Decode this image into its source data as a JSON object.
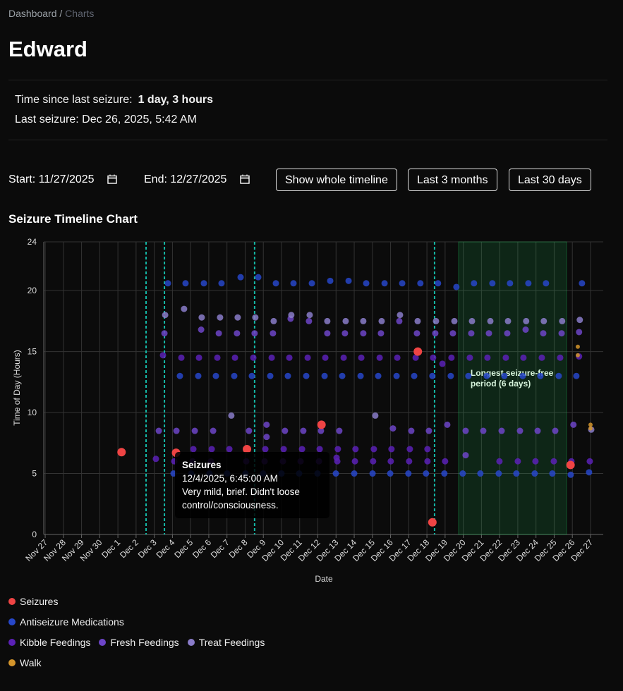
{
  "breadcrumb": {
    "home": "Dashboard",
    "separator": "/",
    "current": "Charts"
  },
  "header": {
    "title": "Edward"
  },
  "info": {
    "since_label": "Time since last seizure:",
    "since_value": "1 day, 3 hours",
    "last": "Last seizure: Dec 26, 2025, 5:42 AM"
  },
  "controls": {
    "start_label": "Start:",
    "start_value": "11/27/2025",
    "end_label": "End:",
    "end_value": "12/27/2025",
    "buttons": [
      "Show whole timeline",
      "Last 3 months",
      "Last 30 days"
    ]
  },
  "section_title": "Seizure Timeline Chart",
  "chart_data": {
    "type": "scatter",
    "x_label": "Date",
    "y_label": "Time of Day (Hours)",
    "grid": true,
    "xlim": [
      -0.08,
      30.7
    ],
    "ylim": [
      0,
      24
    ],
    "yticks": [
      0,
      5,
      10,
      15,
      20,
      24
    ],
    "xticks": [
      {
        "value": 0,
        "label": "Nov 27"
      },
      {
        "value": 1,
        "label": "Nov 28"
      },
      {
        "value": 2,
        "label": "Nov 29"
      },
      {
        "value": 3,
        "label": "Nov 30"
      },
      {
        "value": 4,
        "label": "Dec 1"
      },
      {
        "value": 5,
        "label": "Dec 2"
      },
      {
        "value": 6,
        "label": "Dec 3"
      },
      {
        "value": 7,
        "label": "Dec 4"
      },
      {
        "value": 8,
        "label": "Dec 5"
      },
      {
        "value": 9,
        "label": "Dec 6"
      },
      {
        "value": 10,
        "label": "Dec 7"
      },
      {
        "value": 11,
        "label": "Dec 8"
      },
      {
        "value": 12,
        "label": "Dec 9"
      },
      {
        "value": 13,
        "label": "Dec 10"
      },
      {
        "value": 14,
        "label": "Dec 11"
      },
      {
        "value": 15,
        "label": "Dec 12"
      },
      {
        "value": 16,
        "label": "Dec 13"
      },
      {
        "value": 17,
        "label": "Dec 14"
      },
      {
        "value": 18,
        "label": "Dec 15"
      },
      {
        "value": 19,
        "label": "Dec 16"
      },
      {
        "value": 20,
        "label": "Dec 17"
      },
      {
        "value": 21,
        "label": "Dec 18"
      },
      {
        "value": 22,
        "label": "Dec 19"
      },
      {
        "value": 23,
        "label": "Dec 20"
      },
      {
        "value": 24,
        "label": "Dec 21"
      },
      {
        "value": 25,
        "label": "Dec 22"
      },
      {
        "value": 26,
        "label": "Dec 23"
      },
      {
        "value": 27,
        "label": "Dec 24"
      },
      {
        "value": 28,
        "label": "Dec 25"
      },
      {
        "value": 29,
        "label": "Dec 26"
      },
      {
        "value": 30,
        "label": "Dec 27"
      }
    ],
    "vlines": [
      5.55,
      6.56,
      11.52,
      21.42
    ],
    "vline_color": "#14b8a6",
    "region": {
      "x": [
        22.74,
        28.68
      ],
      "color": "#22c55e",
      "label": [
        "Longest seizure-free",
        "period (6 days)"
      ]
    },
    "tooltip": {
      "title": "Seizures",
      "date": "12/4/2025, 6:45:00 AM",
      "text": "Very mild, brief. Didn't loose control/consciousness."
    },
    "series": [
      {
        "name": "Seizures",
        "color": "#ef4444",
        "x": [
          4.2,
          7.2,
          11.1,
          15.2,
          20.5,
          21.3,
          28.9
        ],
        "values": [
          6.75,
          6.7,
          7.0,
          9.0,
          15.0,
          1.0,
          5.7
        ]
      },
      {
        "name": "Antiseizure Medications",
        "color": "#2747c9",
        "x": [
          6.75,
          7.72,
          8.73,
          9.7,
          10.75,
          11.72,
          12.69,
          13.66,
          14.67,
          15.68,
          16.69,
          17.66,
          18.67,
          19.64,
          20.64,
          21.61,
          22.62,
          23.59,
          24.6,
          25.57,
          26.58,
          27.55,
          29.53,
          7.41,
          8.42,
          9.39,
          10.4,
          11.37,
          12.38,
          13.35,
          14.36,
          15.37,
          16.34,
          17.35,
          18.32,
          19.33,
          20.3,
          21.3,
          22.31,
          23.28,
          24.29,
          25.26,
          26.27,
          27.24,
          28.25,
          29.22,
          7.06,
          8.03,
          9.04,
          10.01,
          11.02,
          11.99,
          13,
          13.97,
          14.98,
          15.99,
          17,
          18.01,
          18.98,
          19.98,
          20.95,
          21.96,
          22.97,
          23.94,
          24.95,
          25.92,
          26.93,
          27.9,
          28.91,
          29.92
        ],
        "values": [
          20.6,
          20.6,
          20.6,
          20.6,
          21.1,
          21.1,
          20.6,
          20.6,
          20.6,
          20.8,
          20.8,
          20.6,
          20.6,
          20.6,
          20.6,
          20.6,
          20.3,
          20.6,
          20.6,
          20.6,
          20.6,
          20.6,
          20.6,
          13,
          13,
          13,
          13,
          13,
          13,
          13,
          13,
          13,
          13,
          13,
          13,
          13,
          13,
          13,
          13,
          13,
          13,
          13,
          13,
          13,
          13,
          13,
          5,
          5,
          5,
          5,
          5,
          5,
          5,
          5,
          5,
          5,
          5,
          5,
          5,
          5,
          5,
          5,
          5,
          5,
          5,
          5,
          5,
          5,
          4.9,
          5.1
        ]
      },
      {
        "name": "Kibble Feedings",
        "color": "#5b21b6",
        "x": [
          6.48,
          7.49,
          8.46,
          9.47,
          10.44,
          11.45,
          12.46,
          13.43,
          14.44,
          15.41,
          16.42,
          17.39,
          18.4,
          19.37,
          20.38,
          21.34,
          22.35,
          23.36,
          24.33,
          25.34,
          26.31,
          27.32,
          28.33,
          8.15,
          9.16,
          10.13,
          11.14,
          12.11,
          13.12,
          14.13,
          15.1,
          16.1,
          17.07,
          18.08,
          19.05,
          20.06,
          21.03,
          7.1,
          8.11,
          9.12,
          11.06,
          12.07,
          13.08,
          14.05,
          15.06,
          16.07,
          17.04,
          18.04,
          19.01,
          20.02,
          21.03,
          22.0,
          24.99,
          26.0,
          26.97,
          27.98,
          28.95,
          29.96,
          6.09,
          16.03,
          21.85,
          29.37
        ],
        "values": [
          14.7,
          14.5,
          14.5,
          14.5,
          14.5,
          14.5,
          14.5,
          14.5,
          14.5,
          14.5,
          14.5,
          14.5,
          14.5,
          14.5,
          14.5,
          14.5,
          14.5,
          14.5,
          14.5,
          14.5,
          14.5,
          14.5,
          14.5,
          7,
          7,
          7,
          7,
          7,
          7,
          7,
          7,
          7,
          7,
          7,
          7,
          7,
          7,
          6,
          6,
          6,
          6,
          6,
          6,
          6,
          6,
          6,
          6,
          6,
          6,
          6,
          6,
          6,
          6,
          6,
          6,
          6,
          6,
          6,
          6.2,
          6.3,
          14.0,
          14.6
        ]
      },
      {
        "name": "Fresh Feedings",
        "color": "#6d45c8",
        "x": [
          6.56,
          8.58,
          9.55,
          10.55,
          11.52,
          12.53,
          13.5,
          14.51,
          15.52,
          16.49,
          17.5,
          18.47,
          19.48,
          20.45,
          21.46,
          22.43,
          23.44,
          24.41,
          25.42,
          26.43,
          27.4,
          28.41,
          29.37,
          6.25,
          7.22,
          8.23,
          9.24,
          11.21,
          12.18,
          13.19,
          14.2,
          15.17,
          16.18,
          19.13,
          20.14,
          21.11,
          22.12,
          23.13,
          24.1,
          25.11,
          26.12,
          27.09,
          28.06,
          29.06,
          12.18,
          23.13
        ],
        "values": [
          16.5,
          16.8,
          16.5,
          16.5,
          16.5,
          16.5,
          17.7,
          17.5,
          16.5,
          16.5,
          16.5,
          16.5,
          17.5,
          16.5,
          16.5,
          16.5,
          16.5,
          16.5,
          16.5,
          16.8,
          16.5,
          16.5,
          16.6,
          8.5,
          8.5,
          8.5,
          8.5,
          8.5,
          9.0,
          8.5,
          8.5,
          8.5,
          8.5,
          8.7,
          8.5,
          8.5,
          9.0,
          8.5,
          8.5,
          8.5,
          8.5,
          8.5,
          8.5,
          9.0,
          8.0,
          6.5
        ]
      },
      {
        "name": "Treat Feedings",
        "color": "#8a7cc9",
        "x": [
          6.6,
          7.64,
          8.61,
          9.62,
          10.59,
          11.56,
          12.57,
          13.54,
          14.55,
          15.52,
          16.53,
          17.5,
          18.51,
          19.52,
          20.49,
          21.5,
          22.51,
          23.48,
          24.49,
          25.46,
          26.46,
          27.43,
          28.44,
          29.41,
          10.24,
          18.16,
          30.04
        ],
        "values": [
          18,
          18.5,
          17.8,
          17.8,
          17.8,
          17.8,
          17.5,
          18,
          18,
          17.5,
          17.5,
          17.5,
          17.5,
          18,
          17.5,
          17.5,
          17.5,
          17.5,
          17.5,
          17.5,
          17.5,
          17.5,
          17.5,
          17.6,
          9.75,
          9.75,
          8.6
        ]
      },
      {
        "name": "Walk",
        "color": "#d4952b",
        "x": [
          29.3,
          29.3,
          30.0,
          30.0
        ],
        "values": [
          14.7,
          15.4,
          8.7,
          9.0
        ]
      }
    ]
  }
}
